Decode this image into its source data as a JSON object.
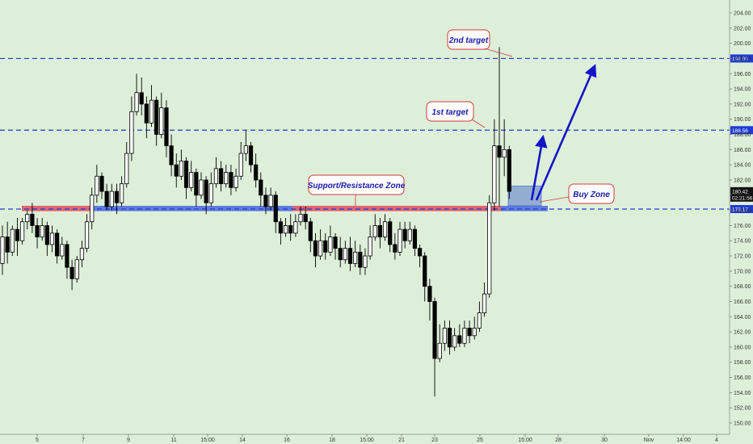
{
  "chart_data": {
    "type": "candlestick",
    "ylim": [
      149,
      206
    ],
    "y_ticks": [
      150,
      152,
      154,
      156,
      158,
      160,
      162,
      164,
      166,
      168,
      170,
      172,
      174,
      176,
      178,
      180,
      182,
      184,
      186,
      188,
      190,
      192,
      194,
      196,
      198,
      200,
      202,
      204
    ],
    "x_ticks": [
      "5",
      "7",
      "9",
      "11",
      "15:00",
      "14",
      "16",
      "18",
      "15:00",
      "21",
      "23",
      "25",
      "15:00",
      "28",
      "30",
      "Nov",
      "14:00",
      "4"
    ],
    "candles": [
      [
        171,
        174.5,
        169.5,
        176
      ],
      [
        174.5,
        172.5,
        171,
        176.5
      ],
      [
        172.5,
        175.5,
        172,
        176
      ],
      [
        175.5,
        174,
        172,
        177
      ],
      [
        174,
        176.5,
        173.5,
        177
      ],
      [
        176.5,
        177.5,
        175.5,
        178
      ],
      [
        177.5,
        176,
        175,
        179
      ],
      [
        176,
        174.5,
        173,
        177
      ],
      [
        174.5,
        176,
        174,
        177
      ],
      [
        176,
        173.5,
        172,
        176.5
      ],
      [
        173.5,
        175,
        172.5,
        176
      ],
      [
        175,
        172,
        171,
        175.5
      ],
      [
        172,
        173.5,
        171.5,
        174.5
      ],
      [
        173.5,
        170.5,
        169,
        174
      ],
      [
        170.5,
        169,
        167.5,
        171.5
      ],
      [
        169,
        171.5,
        168.5,
        172
      ],
      [
        171.5,
        173,
        170.5,
        174
      ],
      [
        173,
        176.5,
        172.5,
        177.5
      ],
      [
        176.5,
        180,
        175.5,
        181
      ],
      [
        180,
        182.5,
        179,
        184
      ],
      [
        182.5,
        180.5,
        179.5,
        183
      ],
      [
        180.5,
        178.5,
        178,
        181.5
      ],
      [
        178.5,
        180.5,
        178,
        181.5
      ],
      [
        180.5,
        179,
        177.5,
        181.5
      ],
      [
        179,
        181.5,
        178.5,
        182.5
      ],
      [
        181.5,
        185.5,
        181,
        187
      ],
      [
        185.5,
        191,
        184.5,
        193
      ],
      [
        191,
        193.5,
        190.5,
        196
      ],
      [
        193.5,
        192,
        190.5,
        195.5
      ],
      [
        192,
        189.5,
        187.5,
        193
      ],
      [
        189.5,
        192.5,
        189,
        194.5
      ],
      [
        192.5,
        188,
        186.5,
        193
      ],
      [
        188,
        191.5,
        187.5,
        193.5
      ],
      [
        191.5,
        186.5,
        185,
        192.5
      ],
      [
        186.5,
        184,
        182.5,
        188
      ],
      [
        184,
        182.5,
        181,
        185.5
      ],
      [
        182.5,
        184.5,
        182,
        186
      ],
      [
        184.5,
        181,
        179.5,
        185
      ],
      [
        181,
        183,
        180.5,
        184.5
      ],
      [
        183,
        180,
        178.5,
        183.5
      ],
      [
        180,
        182,
        179.5,
        183
      ],
      [
        182,
        179,
        177.5,
        182.5
      ],
      [
        179,
        181.5,
        178.5,
        183
      ],
      [
        181.5,
        183.5,
        181,
        185
      ],
      [
        183.5,
        181.5,
        180.5,
        184.5
      ],
      [
        181.5,
        183,
        181,
        184
      ],
      [
        183,
        181,
        180,
        184
      ],
      [
        181,
        182.5,
        180.5,
        183.5
      ],
      [
        182.5,
        185.5,
        182,
        187
      ],
      [
        185.5,
        186.5,
        184.5,
        188.5
      ],
      [
        186.5,
        184,
        183,
        187
      ],
      [
        184,
        182,
        181,
        185.5
      ],
      [
        182,
        180,
        178.5,
        183
      ],
      [
        180,
        178.5,
        177.5,
        181
      ],
      [
        178.5,
        180,
        178,
        181
      ],
      [
        180,
        176.5,
        175,
        180.5
      ],
      [
        176.5,
        175,
        173.5,
        177
      ],
      [
        175,
        176,
        174.5,
        177
      ],
      [
        176,
        175,
        174,
        177.5
      ],
      [
        175,
        176.5,
        174.5,
        177.5
      ],
      [
        176.5,
        177.5,
        176,
        178.5
      ],
      [
        177.5,
        176.5,
        175.5,
        178.5
      ],
      [
        176.5,
        174,
        172.5,
        177
      ],
      [
        174,
        172,
        170.5,
        175
      ],
      [
        172,
        174,
        171.5,
        175.5
      ],
      [
        174,
        172.5,
        171.5,
        175
      ],
      [
        172.5,
        174.5,
        172,
        176
      ],
      [
        174.5,
        173,
        171.5,
        175
      ],
      [
        173,
        171.5,
        170.5,
        174.5
      ],
      [
        171.5,
        173,
        171,
        174
      ],
      [
        173,
        171,
        170,
        174.5
      ],
      [
        171,
        172.5,
        170.5,
        174
      ],
      [
        172.5,
        170.5,
        169.5,
        173.5
      ],
      [
        170.5,
        172,
        169.5,
        173
      ],
      [
        172,
        174.5,
        171.5,
        176
      ],
      [
        174.5,
        176,
        174,
        177.5
      ],
      [
        176,
        174.5,
        173,
        177
      ],
      [
        174.5,
        176.5,
        174,
        177.5
      ],
      [
        176.5,
        173.5,
        172.5,
        177
      ],
      [
        173.5,
        172.5,
        171.5,
        175
      ],
      [
        172.5,
        175.5,
        172,
        176.5
      ],
      [
        175.5,
        174,
        173,
        176.5
      ],
      [
        174,
        175.5,
        173.5,
        176.5
      ],
      [
        175.5,
        173,
        172,
        176
      ],
      [
        173,
        172,
        170.5,
        173.5
      ],
      [
        172,
        168,
        166,
        172.5
      ],
      [
        168,
        166,
        163.5,
        169
      ],
      [
        166,
        158.5,
        153.5,
        166.5
      ],
      [
        158.5,
        160.5,
        158,
        163
      ],
      [
        160.5,
        162.5,
        159.5,
        163.5
      ],
      [
        162.5,
        160,
        159,
        163.5
      ],
      [
        160,
        161.5,
        159.5,
        162.5
      ],
      [
        161.5,
        160.5,
        160,
        163
      ],
      [
        160.5,
        162.5,
        160,
        163.5
      ],
      [
        162.5,
        161.5,
        160.5,
        163.5
      ],
      [
        161.5,
        162.5,
        161,
        164
      ],
      [
        162.5,
        164.5,
        162,
        166
      ],
      [
        164.5,
        167,
        164,
        168.5
      ],
      [
        167,
        179,
        166.5,
        180
      ],
      [
        179,
        186.5,
        178,
        190
      ],
      [
        186.5,
        185,
        178.5,
        199.5
      ],
      [
        185,
        186,
        182.5,
        190
      ],
      [
        186,
        180.5,
        179.5,
        186.5
      ]
    ],
    "annotations": {
      "first_target": "1st target",
      "second_target": "2nd target",
      "zone_label": "Support/Resistance Zone",
      "buy_label": "Buy Zone"
    },
    "levels": [
      {
        "price": 198.0,
        "label": "198.00"
      },
      {
        "price": 188.56,
        "label": "188.56"
      },
      {
        "price": 178.17,
        "label": "178.17"
      }
    ],
    "current_price": {
      "price": 180.42,
      "label": "180.42",
      "timer": "02:21:56"
    },
    "zone": {
      "low": 177.9,
      "high": 178.6
    },
    "colors": {
      "background": "#ddefd9",
      "candle_up": "#ffffff",
      "candle_down": "#000000",
      "level_line": "#1f3bd4",
      "zone_red": "#e04a5a",
      "zone_blue": "#3355e0",
      "arrow": "#1414c8",
      "callout_border": "#d23a3a",
      "callout_text": "#1a1aa8",
      "level_badge": "#1f3bd4",
      "price_badge": "#111111"
    }
  }
}
